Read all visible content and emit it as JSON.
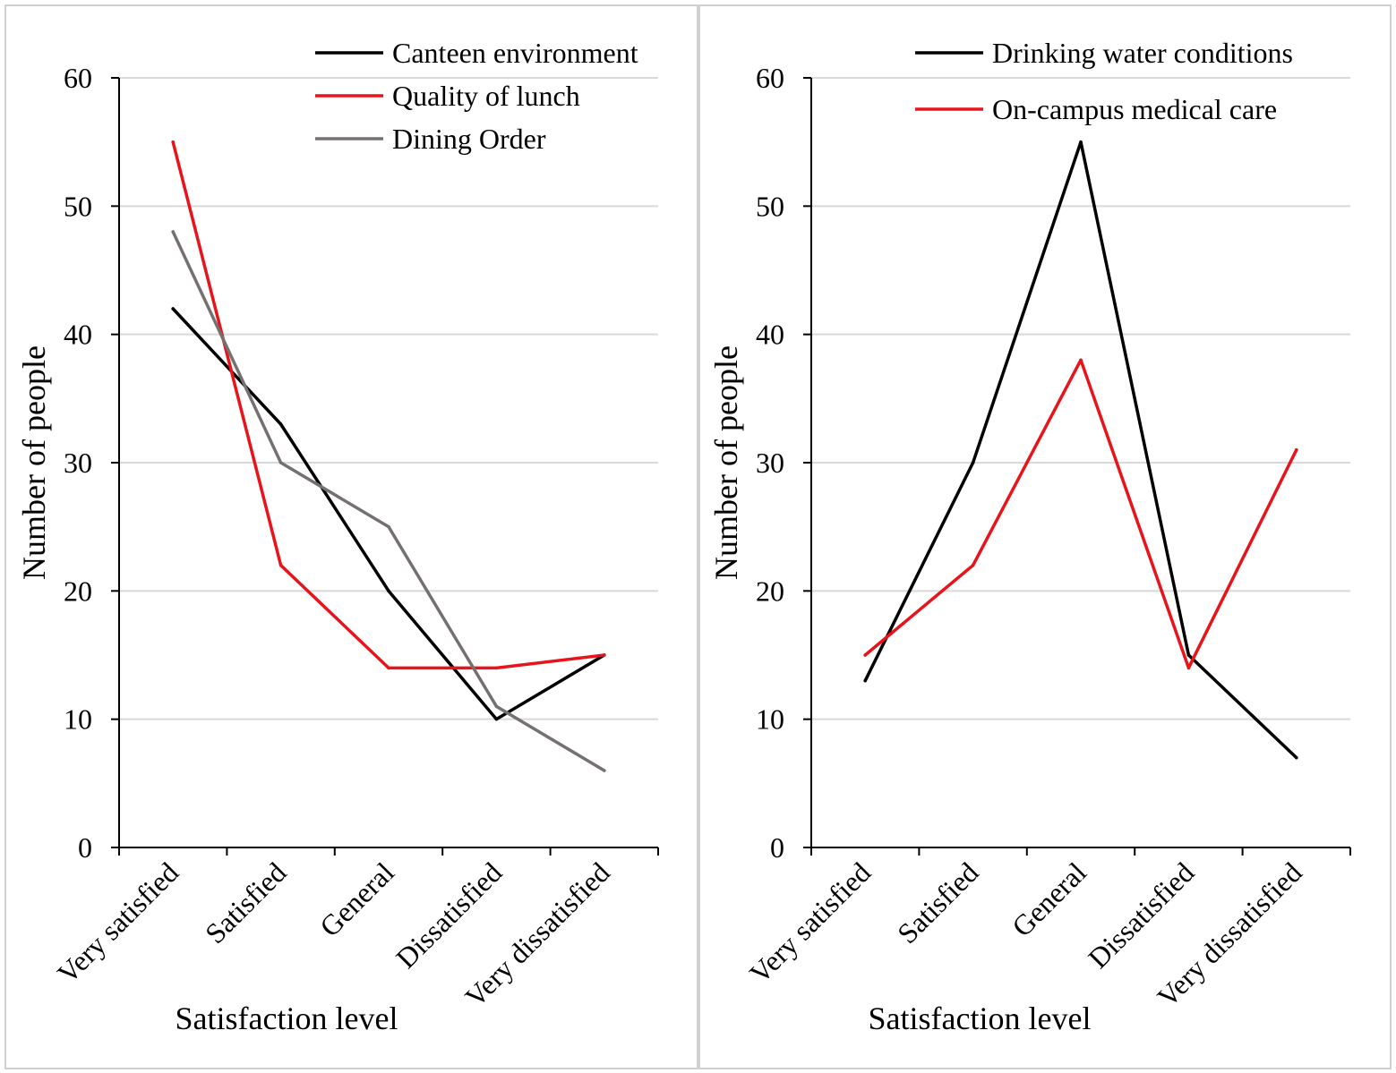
{
  "chart_data": [
    {
      "type": "line",
      "categories": [
        "Very satisfied",
        "Satisfied",
        "General",
        "Dissatisfied",
        "Very dissatisfied"
      ],
      "series": [
        {
          "name": "Canteen environment",
          "values": [
            42,
            33,
            20,
            10,
            15
          ],
          "color": "#000000"
        },
        {
          "name": "Quality of lunch",
          "values": [
            55,
            22,
            14,
            14,
            15
          ],
          "color": "#e8141b"
        },
        {
          "name": "Dining Order",
          "values": [
            48,
            30,
            25,
            11,
            6
          ],
          "color": "#767171"
        }
      ],
      "title": "",
      "xlabel": "Satisfaction level",
      "ylabel": "Number of people",
      "ylim": [
        0,
        60
      ],
      "yticks": [
        "0",
        "10",
        "20",
        "30",
        "40",
        "50",
        "60"
      ],
      "grid": true,
      "legend": "top-right"
    },
    {
      "type": "line",
      "categories": [
        "Very satisfied",
        "Satisfied",
        "General",
        "Dissatisfied",
        "Very dissatisfied"
      ],
      "series": [
        {
          "name": "Drinking water conditions",
          "values": [
            13,
            30,
            55,
            15,
            7
          ],
          "color": "#000000"
        },
        {
          "name": "On-campus medical care",
          "values": [
            15,
            22,
            38,
            14,
            31
          ],
          "color": "#e8141b"
        }
      ],
      "title": "",
      "xlabel": "Satisfaction level",
      "ylabel": "Number of people",
      "ylim": [
        0,
        60
      ],
      "yticks": [
        "0",
        "10",
        "20",
        "30",
        "40",
        "50",
        "60"
      ],
      "grid": true,
      "legend": "top-right"
    }
  ]
}
